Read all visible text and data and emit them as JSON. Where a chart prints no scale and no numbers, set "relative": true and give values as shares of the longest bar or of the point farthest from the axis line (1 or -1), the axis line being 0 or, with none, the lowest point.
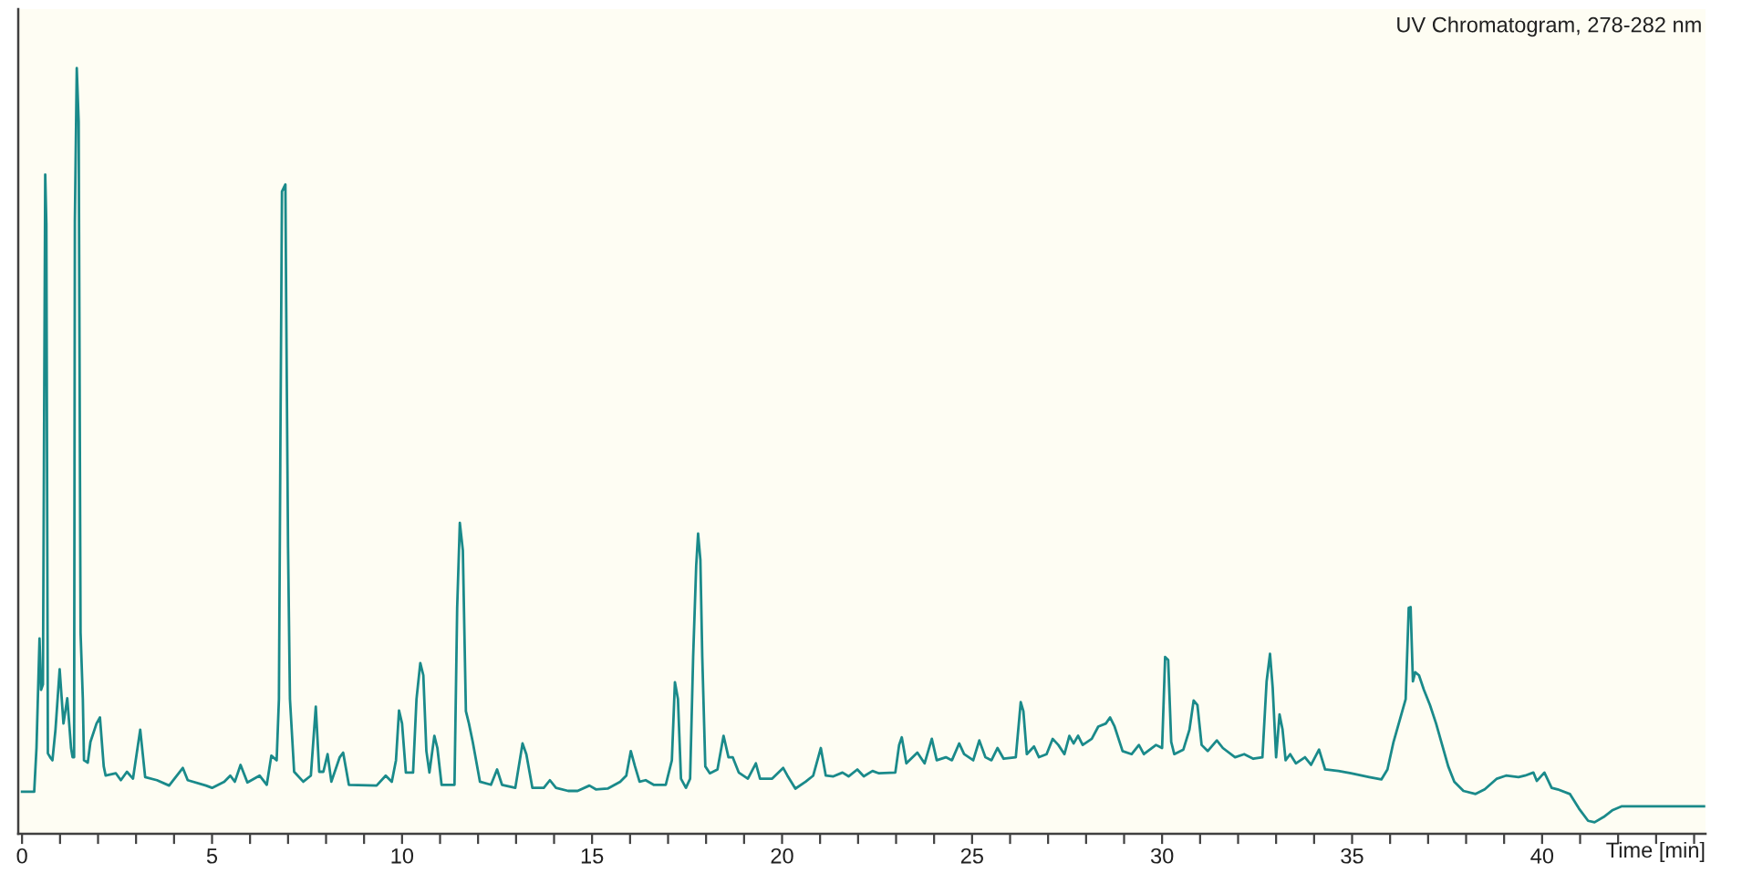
{
  "chart_data": {
    "type": "line",
    "title": "UV Chromatogram, 278-282 nm",
    "xlabel": "Time [min]",
    "relative": true,
    "color": "#1a8a8a",
    "line_style": "solid",
    "tick_labels": "x",
    "xlim": [
      -0.1,
      44.3
    ],
    "xticks": [
      0,
      {
        "value": 1,
        "label": null
      },
      {
        "value": 2,
        "label": null
      },
      {
        "value": 3,
        "label": null
      },
      {
        "value": 4,
        "label": null
      },
      5,
      {
        "value": 6,
        "label": null
      },
      {
        "value": 7,
        "label": null
      },
      {
        "value": 8,
        "label": null
      },
      {
        "value": 9,
        "label": null
      },
      10,
      {
        "value": 11,
        "label": null
      },
      {
        "value": 12,
        "label": null
      },
      {
        "value": 13,
        "label": null
      },
      {
        "value": 14,
        "label": null
      },
      15,
      {
        "value": 16,
        "label": null
      },
      {
        "value": 17,
        "label": null
      },
      {
        "value": 18,
        "label": null
      },
      {
        "value": 19,
        "label": null
      },
      20,
      {
        "value": 21,
        "label": null
      },
      {
        "value": 22,
        "label": null
      },
      {
        "value": 23,
        "label": null
      },
      {
        "value": 24,
        "label": null
      },
      25,
      {
        "value": 26,
        "label": null
      },
      {
        "value": 27,
        "label": null
      },
      {
        "value": 28,
        "label": null
      },
      {
        "value": 29,
        "label": null
      },
      30,
      {
        "value": 31,
        "label": null
      },
      {
        "value": 32,
        "label": null
      },
      {
        "value": 33,
        "label": null
      },
      {
        "value": 34,
        "label": null
      },
      35,
      {
        "value": 36,
        "label": null
      },
      {
        "value": 37,
        "label": null
      },
      {
        "value": 38,
        "label": null
      },
      {
        "value": 39,
        "label": null
      },
      40,
      {
        "value": 41,
        "label": null
      },
      {
        "value": 42,
        "label": null
      },
      {
        "value": 43,
        "label": null
      },
      {
        "value": 44,
        "label": null
      }
    ],
    "x": [
      0,
      0.32,
      0.38,
      0.46,
      0.5,
      0.55,
      0.61,
      0.64,
      0.68,
      0.74,
      0.8,
      0.88,
      0.99,
      1.09,
      1.19,
      1.29,
      1.33,
      1.37,
      1.39,
      1.44,
      1.49,
      1.54,
      1.6,
      1.63,
      1.73,
      1.8,
      1.96,
      2.05,
      2.15,
      2.2,
      2.47,
      2.6,
      2.76,
      2.92,
      3.11,
      3.24,
      3.55,
      3.87,
      4.23,
      4.36,
      4.84,
      5.0,
      5.32,
      5.48,
      5.6,
      5.75,
      5.93,
      6.25,
      6.44,
      6.56,
      6.7,
      6.76,
      6.8,
      6.84,
      6.93,
      6.95,
      7.0,
      7.05,
      7.16,
      7.4,
      7.6,
      7.73,
      7.82,
      7.93,
      8.04,
      8.14,
      8.36,
      8.45,
      8.6,
      9.33,
      9.57,
      9.73,
      9.84,
      9.92,
      10.0,
      10.1,
      10.29,
      10.38,
      10.48,
      10.56,
      10.64,
      10.72,
      10.85,
      10.93,
      11.04,
      11.38,
      11.45,
      11.52,
      11.6,
      11.68,
      11.76,
      11.86,
      12.05,
      12.34,
      12.5,
      12.63,
      12.98,
      13.17,
      13.27,
      13.43,
      13.73,
      13.89,
      14.05,
      14.37,
      14.62,
      14.93,
      15.1,
      15.41,
      15.74,
      15.9,
      16.02,
      16.13,
      16.25,
      16.41,
      16.62,
      16.94,
      17.1,
      17.18,
      17.26,
      17.34,
      17.47,
      17.58,
      17.66,
      17.74,
      17.79,
      17.85,
      17.9,
      17.98,
      18.1,
      18.3,
      18.46,
      18.59,
      18.7,
      18.86,
      19.1,
      19.31,
      19.42,
      19.74,
      20.03,
      20.14,
      20.35,
      20.62,
      20.82,
      21.02,
      21.15,
      21.35,
      21.59,
      21.75,
      21.98,
      22.15,
      22.38,
      22.55,
      22.98,
      23.08,
      23.15,
      23.27,
      23.56,
      23.75,
      23.94,
      24.07,
      24.31,
      24.47,
      24.66,
      24.79,
      25.03,
      25.19,
      25.35,
      25.51,
      25.67,
      25.83,
      26.15,
      26.28,
      26.35,
      26.44,
      26.63,
      26.76,
      26.96,
      27.12,
      27.27,
      27.43,
      27.56,
      27.67,
      27.79,
      27.91,
      28.15,
      28.32,
      28.52,
      28.63,
      28.75,
      28.96,
      29.2,
      29.39,
      29.52,
      29.84,
      30.0,
      30.08,
      30.16,
      30.24,
      30.32,
      30.56,
      30.72,
      30.83,
      30.93,
      31.04,
      31.2,
      31.44,
      31.6,
      31.92,
      32.16,
      32.4,
      32.64,
      32.75,
      32.84,
      32.91,
      33.0,
      33.09,
      33.17,
      33.25,
      33.37,
      33.52,
      33.76,
      33.92,
      34.13,
      34.29,
      34.64,
      34.97,
      35.45,
      35.77,
      35.93,
      36.09,
      36.25,
      36.41,
      36.49,
      36.54,
      36.6,
      36.66,
      36.76,
      36.89,
      37.05,
      37.21,
      37.37,
      37.53,
      37.69,
      37.93,
      38.25,
      38.49,
      38.81,
      39.05,
      39.38,
      39.55,
      39.77,
      39.86,
      40.06,
      40.25,
      40.41,
      40.73,
      40.97,
      41.21,
      41.38,
      41.62,
      41.86,
      42.1,
      42.34,
      44.26
    ],
    "values": [
      0.055,
      0.055,
      0.112,
      0.255,
      0.188,
      0.195,
      0.861,
      0.796,
      0.105,
      0.1,
      0.096,
      0.136,
      0.215,
      0.144,
      0.177,
      0.112,
      0.1,
      0.1,
      0.799,
      1.0,
      0.93,
      0.263,
      0.176,
      0.096,
      0.093,
      0.12,
      0.144,
      0.152,
      0.088,
      0.076,
      0.079,
      0.07,
      0.081,
      0.072,
      0.136,
      0.074,
      0.07,
      0.063,
      0.086,
      0.07,
      0.063,
      0.06,
      0.068,
      0.076,
      0.068,
      0.09,
      0.067,
      0.076,
      0.064,
      0.102,
      0.096,
      0.176,
      0.521,
      0.839,
      0.848,
      0.7,
      0.374,
      0.176,
      0.081,
      0.068,
      0.076,
      0.166,
      0.081,
      0.081,
      0.104,
      0.068,
      0.1,
      0.106,
      0.064,
      0.063,
      0.076,
      0.068,
      0.096,
      0.161,
      0.144,
      0.08,
      0.08,
      0.176,
      0.223,
      0.207,
      0.108,
      0.08,
      0.128,
      0.112,
      0.064,
      0.064,
      0.295,
      0.406,
      0.37,
      0.16,
      0.144,
      0.12,
      0.068,
      0.064,
      0.084,
      0.064,
      0.06,
      0.118,
      0.104,
      0.06,
      0.06,
      0.07,
      0.06,
      0.056,
      0.056,
      0.063,
      0.058,
      0.059,
      0.068,
      0.076,
      0.108,
      0.088,
      0.068,
      0.07,
      0.064,
      0.064,
      0.096,
      0.198,
      0.176,
      0.072,
      0.06,
      0.072,
      0.231,
      0.35,
      0.392,
      0.358,
      0.231,
      0.088,
      0.079,
      0.084,
      0.128,
      0.1,
      0.1,
      0.08,
      0.072,
      0.092,
      0.072,
      0.072,
      0.086,
      0.076,
      0.059,
      0.068,
      0.076,
      0.112,
      0.076,
      0.075,
      0.08,
      0.075,
      0.084,
      0.075,
      0.082,
      0.079,
      0.08,
      0.116,
      0.126,
      0.092,
      0.106,
      0.092,
      0.124,
      0.096,
      0.1,
      0.096,
      0.118,
      0.104,
      0.096,
      0.122,
      0.1,
      0.096,
      0.112,
      0.098,
      0.1,
      0.172,
      0.16,
      0.104,
      0.114,
      0.1,
      0.104,
      0.124,
      0.116,
      0.104,
      0.128,
      0.118,
      0.128,
      0.116,
      0.124,
      0.14,
      0.144,
      0.152,
      0.14,
      0.108,
      0.104,
      0.116,
      0.104,
      0.116,
      0.112,
      0.231,
      0.227,
      0.12,
      0.104,
      0.11,
      0.136,
      0.174,
      0.168,
      0.116,
      0.108,
      0.122,
      0.112,
      0.1,
      0.104,
      0.098,
      0.1,
      0.199,
      0.235,
      0.191,
      0.1,
      0.156,
      0.136,
      0.096,
      0.104,
      0.092,
      0.1,
      0.09,
      0.11,
      0.084,
      0.082,
      0.079,
      0.074,
      0.071,
      0.084,
      0.12,
      0.148,
      0.176,
      0.295,
      0.296,
      0.199,
      0.211,
      0.207,
      0.188,
      0.168,
      0.144,
      0.116,
      0.088,
      0.068,
      0.056,
      0.052,
      0.058,
      0.072,
      0.076,
      0.074,
      0.076,
      0.08,
      0.069,
      0.08,
      0.06,
      0.058,
      0.052,
      0.033,
      0.017,
      0.015,
      0.022,
      0.031,
      0.036,
      0.036,
      0.036
    ]
  }
}
